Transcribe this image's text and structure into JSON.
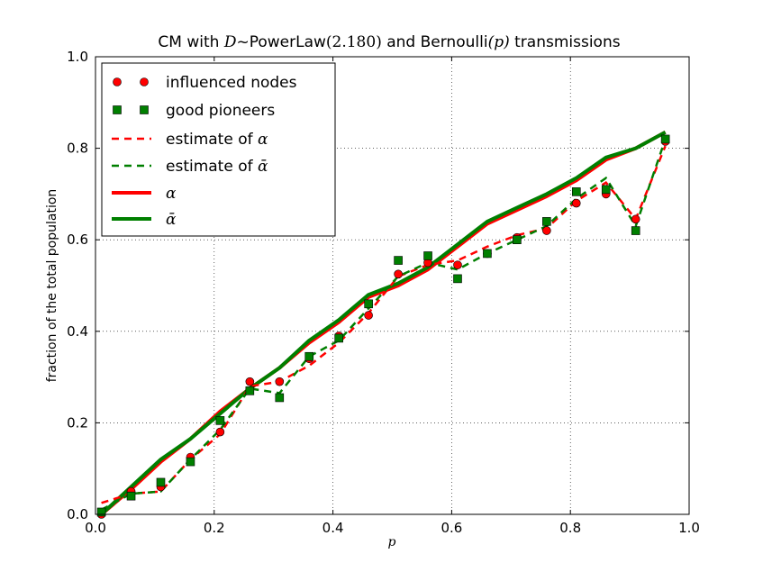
{
  "chart_data": {
    "type": "line",
    "title": {
      "pre": "CM with ",
      "d": "D",
      "tilde": "~PowerLaw",
      "param": "(2.180)",
      "mid": " and Bernoulli",
      "p": "(p)",
      "post": " transmissions"
    },
    "xlabel": "p",
    "ylabel": "fraction of the total population",
    "xlim": [
      0.0,
      1.0
    ],
    "ylim": [
      0.0,
      1.0
    ],
    "xticks": [
      "0.0",
      "0.2",
      "0.4",
      "0.6",
      "0.8",
      "1.0"
    ],
    "yticks": [
      "0.0",
      "0.2",
      "0.4",
      "0.6",
      "0.8",
      "1.0"
    ],
    "grid": true,
    "legend_position": "top-left",
    "legend": [
      {
        "label": "influenced nodes",
        "style": "red-circles"
      },
      {
        "label": "good pioneers",
        "style": "green-squares"
      },
      {
        "label_pre": "estimate of ",
        "label_math": "α",
        "style": "red-dashed"
      },
      {
        "label_pre": "estimate of ",
        "label_math": "ᾱ",
        "style": "green-dashed"
      },
      {
        "label_math": "α",
        "style": "red-solid"
      },
      {
        "label_math": "ᾱ",
        "style": "green-solid"
      }
    ],
    "x": [
      0.01,
      0.06,
      0.11,
      0.16,
      0.21,
      0.26,
      0.31,
      0.36,
      0.41,
      0.46,
      0.51,
      0.56,
      0.61,
      0.66,
      0.71,
      0.76,
      0.81,
      0.86,
      0.91,
      0.96
    ],
    "series": [
      {
        "name": "influenced nodes",
        "color": "#ff0000",
        "values": [
          0.0,
          0.05,
          0.06,
          0.125,
          0.18,
          0.29,
          0.29,
          0.34,
          0.39,
          0.435,
          0.525,
          0.55,
          0.545,
          0.57,
          0.605,
          0.62,
          0.68,
          0.7,
          0.645,
          0.815
        ]
      },
      {
        "name": "good pioneers",
        "color": "#007f00",
        "values": [
          0.005,
          0.04,
          0.07,
          0.115,
          0.205,
          0.27,
          0.255,
          0.345,
          0.385,
          0.46,
          0.555,
          0.565,
          0.515,
          0.57,
          0.6,
          0.64,
          0.705,
          0.71,
          0.62,
          0.82
        ]
      },
      {
        "name": "estimate of α",
        "color": "#ff0000",
        "values": [
          0.025,
          0.045,
          0.05,
          0.12,
          0.175,
          0.28,
          0.29,
          0.325,
          0.375,
          0.44,
          0.52,
          0.545,
          0.555,
          0.585,
          0.61,
          0.625,
          0.685,
          0.725,
          0.645,
          0.805
        ]
      },
      {
        "name": "estimate of ᾱ",
        "color": "#007f00",
        "values": [
          0.01,
          0.045,
          0.05,
          0.12,
          0.185,
          0.275,
          0.265,
          0.345,
          0.38,
          0.45,
          0.52,
          0.55,
          0.535,
          0.57,
          0.6,
          0.63,
          0.69,
          0.735,
          0.63,
          0.82
        ]
      },
      {
        "name": "α",
        "color": "#ff0000",
        "values": [
          0.0,
          0.055,
          0.115,
          0.165,
          0.225,
          0.275,
          0.32,
          0.375,
          0.42,
          0.475,
          0.5,
          0.535,
          0.585,
          0.635,
          0.665,
          0.695,
          0.73,
          0.775,
          0.8,
          0.835
        ]
      },
      {
        "name": "ᾱ",
        "color": "#007f00",
        "values": [
          0.0,
          0.06,
          0.12,
          0.165,
          0.22,
          0.275,
          0.32,
          0.38,
          0.425,
          0.48,
          0.505,
          0.54,
          0.59,
          0.64,
          0.67,
          0.7,
          0.735,
          0.78,
          0.8,
          0.835
        ]
      }
    ]
  }
}
